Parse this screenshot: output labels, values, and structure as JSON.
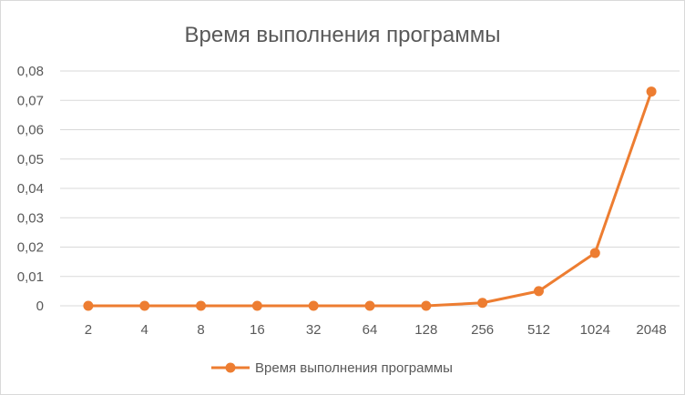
{
  "chart_data": {
    "type": "line",
    "title": "Время выполнения программы",
    "xlabel": "",
    "ylabel": "",
    "categories": [
      "2",
      "4",
      "8",
      "16",
      "32",
      "64",
      "128",
      "256",
      "512",
      "1024",
      "2048"
    ],
    "series": [
      {
        "name": "Время выполнения программы",
        "values": [
          0,
          0,
          0,
          0,
          0,
          0,
          0,
          0.001,
          0.005,
          0.018,
          0.073
        ],
        "color": "#ed7d31"
      }
    ],
    "ylim": [
      0,
      0.08
    ],
    "yticks": [
      "0",
      "0,01",
      "0,02",
      "0,03",
      "0,04",
      "0,05",
      "0,06",
      "0,07",
      "0,08"
    ],
    "grid": true,
    "legend_position": "bottom"
  }
}
